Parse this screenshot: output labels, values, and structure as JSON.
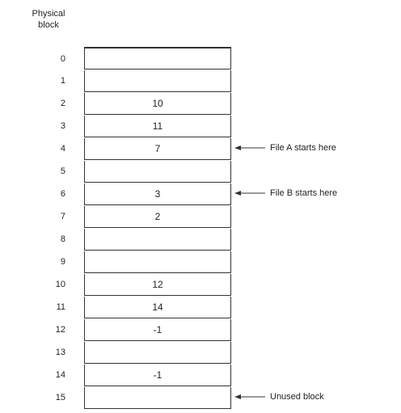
{
  "header": {
    "line1": "Physical",
    "line2": "block"
  },
  "blocks": [
    {
      "num": "0",
      "val": ""
    },
    {
      "num": "1",
      "val": ""
    },
    {
      "num": "2",
      "val": "10"
    },
    {
      "num": "3",
      "val": "11"
    },
    {
      "num": "4",
      "val": "7"
    },
    {
      "num": "5",
      "val": ""
    },
    {
      "num": "6",
      "val": "3"
    },
    {
      "num": "7",
      "val": "2"
    },
    {
      "num": "8",
      "val": ""
    },
    {
      "num": "9",
      "val": ""
    },
    {
      "num": "10",
      "val": "12"
    },
    {
      "num": "11",
      "val": "14"
    },
    {
      "num": "12",
      "val": "-1"
    },
    {
      "num": "13",
      "val": ""
    },
    {
      "num": "14",
      "val": "-1"
    },
    {
      "num": "15",
      "val": ""
    }
  ],
  "annotations": [
    {
      "row": 4,
      "text": "File A starts here"
    },
    {
      "row": 6,
      "text": "File B starts here"
    },
    {
      "row": 15,
      "text": "Unused block"
    }
  ]
}
